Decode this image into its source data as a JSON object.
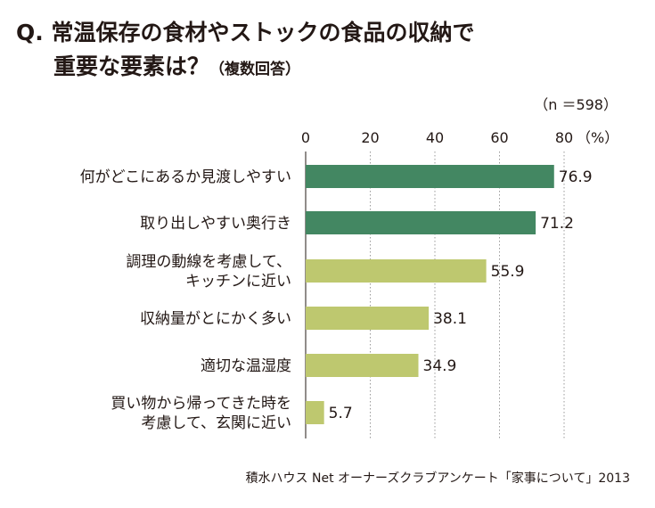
{
  "title": {
    "line1": "Q. 常温保存の食材やストックの食品の収納で",
    "line2": "重要な要素は？",
    "note": "（複数回答）"
  },
  "sample_note": "（n ＝598）",
  "source": "積水ハウス Net オーナーズクラブアンケート「家事について」2013",
  "colors": {
    "dark_bar": "#438762",
    "light_bar": "#bec86f",
    "grid": "#9a9a9a"
  },
  "chart_data": {
    "type": "bar",
    "orientation": "horizontal",
    "title": "Q. 常温保存の食材やストックの食品の収納で重要な要素は？（複数回答）",
    "categories": [
      [
        "何がどこにあるか見渡しやすい"
      ],
      [
        "取り出しやすい奥行き"
      ],
      [
        "調理の動線を考慮して、",
        "キッチンに近い"
      ],
      [
        "収納量がとにかく多い"
      ],
      [
        "適切な温湿度"
      ],
      [
        "買い物から帰ってきた時を",
        "考慮して、玄関に近い"
      ]
    ],
    "values": [
      76.9,
      71.2,
      55.9,
      38.1,
      34.9,
      5.7
    ],
    "value_labels": [
      "76.9",
      "71.2",
      "55.9",
      "38.1",
      "34.9",
      "5.7"
    ],
    "highlight": [
      true,
      true,
      false,
      false,
      false,
      false
    ],
    "xlim": [
      0,
      80
    ],
    "xticks": [
      "0",
      "20",
      "40",
      "60",
      "80"
    ],
    "unit": "（%）",
    "grid": "vertical-dotted"
  }
}
